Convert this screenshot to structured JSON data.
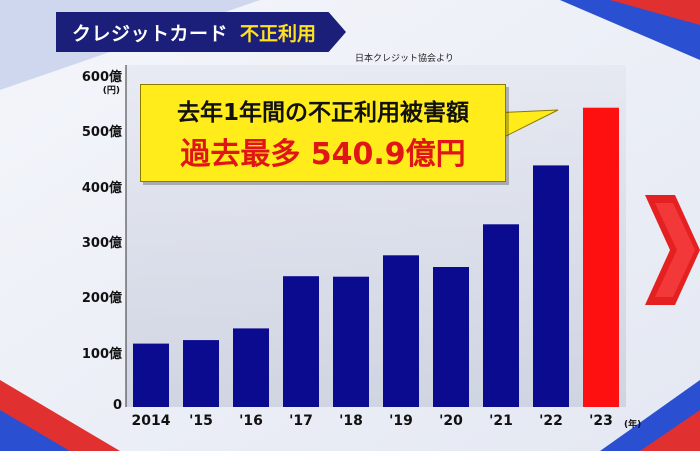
{
  "header": {
    "title": "クレジットカード",
    "subtitle": "不正利用",
    "source": "日本クレジット協会より"
  },
  "callout": {
    "line1": "去年1年間の不正利用被害額",
    "line2": "過去最多 540.9億円"
  },
  "colors": {
    "bar": "#0b0b8f",
    "highlight_bar": "#ff1010",
    "title_bg": "#1b1f7a",
    "title_accent": "#ffe21f",
    "callout_bg": "#ffec1a",
    "callout_red": "#e01515"
  },
  "chart_data": {
    "type": "bar",
    "categories": [
      "2014",
      "'15",
      "'16",
      "'17",
      "'18",
      "'19",
      "'20",
      "'21",
      "'22",
      "'23"
    ],
    "values": [
      114.5,
      120.9,
      142.0,
      236.4,
      235.4,
      274.1,
      253.0,
      330.1,
      436.7,
      540.9
    ],
    "highlight_index": 9,
    "ylim": [
      0,
      600
    ],
    "yticks": [
      0,
      100,
      200,
      300,
      400,
      500,
      600
    ],
    "ytick_labels": [
      "0",
      "100億",
      "200億",
      "300億",
      "400億",
      "500億",
      "600億"
    ],
    "yunit": "(円)",
    "xunit": "(年)",
    "grid": false,
    "legend": "none"
  }
}
